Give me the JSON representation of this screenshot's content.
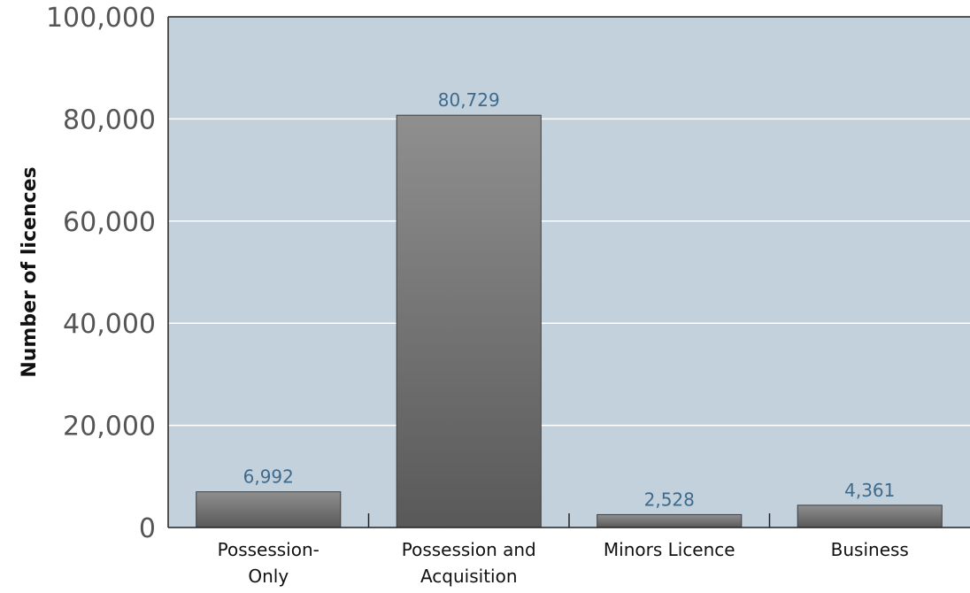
{
  "chart_data": {
    "type": "bar",
    "categories": [
      "Possession-\nOnly",
      "Possession and\nAcquisition",
      "Minors Licence",
      "Business"
    ],
    "values": [
      6992,
      80729,
      2528,
      4361
    ],
    "value_labels": [
      "6,992",
      "80,729",
      "2,528",
      "4,361"
    ],
    "title": "",
    "xlabel": "",
    "ylabel": "Number of licences",
    "ylim": [
      0,
      100000
    ],
    "yticks": [
      0,
      20000,
      40000,
      60000,
      80000,
      100000
    ],
    "ytick_labels": [
      "0",
      "20,000",
      "40,000",
      "60,000",
      "80,000",
      "100,000"
    ],
    "grid": true,
    "legend": "none"
  },
  "colors": {
    "plot_background": "#c3d1dd",
    "gridline": "#ffffff",
    "bar_top": "#8f8f8f",
    "bar_bottom": "#595959",
    "bar_border": "#3f3f3f",
    "value_label": "#3e6a8c",
    "axis": "#222222"
  }
}
